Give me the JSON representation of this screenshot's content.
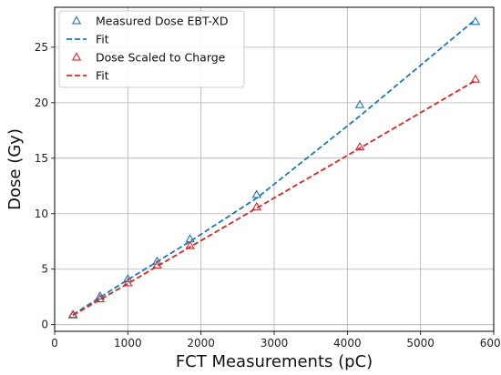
{
  "chart_data": {
    "type": "scatter",
    "title": "",
    "xlabel": "FCT Measurements (pC)",
    "ylabel": "Dose (Gy)",
    "xlim": [
      0,
      6000
    ],
    "ylim": [
      -0.6,
      28.6
    ],
    "x_ticks": [
      0,
      1000,
      2000,
      3000,
      4000,
      5000,
      6000
    ],
    "y_ticks": [
      0,
      5,
      10,
      15,
      20,
      25
    ],
    "grid": true,
    "legend_position": "top-left",
    "series": [
      {
        "name": "Measured Dose EBT-XD",
        "kind": "markers",
        "marker": "triangle",
        "color": "#1f77b4",
        "x": [
          250,
          620,
          1000,
          1400,
          1850,
          2760,
          4170,
          5750
        ],
        "y": [
          0.9,
          2.55,
          4.1,
          5.7,
          7.7,
          11.7,
          19.8,
          27.3
        ]
      },
      {
        "name": "Fit",
        "kind": "line",
        "dash": true,
        "color": "#1f77b4",
        "x": [
          250,
          1000,
          1850,
          2760,
          4170,
          5750
        ],
        "y": [
          0.9,
          4.05,
          7.5,
          11.4,
          18.8,
          27.5
        ]
      },
      {
        "name": "Dose Scaled to Charge",
        "kind": "markers",
        "marker": "triangle",
        "color": "#d62728",
        "x": [
          250,
          620,
          1000,
          1400,
          1850,
          2760,
          4170,
          5750
        ],
        "y": [
          0.85,
          2.3,
          3.75,
          5.35,
          7.1,
          10.6,
          16.0,
          22.1
        ]
      },
      {
        "name": "Fit",
        "kind": "line",
        "dash": true,
        "color": "#d62728",
        "x": [
          250,
          1000,
          1850,
          2760,
          4170,
          5750
        ],
        "y": [
          0.85,
          3.7,
          7.0,
          10.5,
          15.9,
          22.0
        ]
      }
    ]
  }
}
